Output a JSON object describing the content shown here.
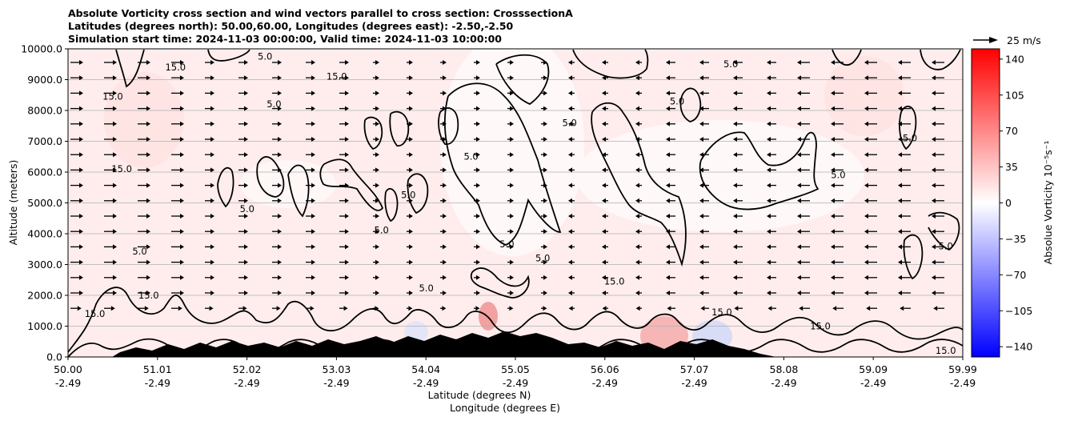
{
  "title_lines": [
    "Absolute Vorticity cross section and wind vectors parallel to cross section: CrosssectionA",
    "Latitudes (degrees north): 50.00,60.00, Longitudes (degrees east): -2.50,-2.50",
    "Simulation start time: 2024-11-03 00:00:00, Valid time: 2024-11-03 10:00:00"
  ],
  "chart_data": {
    "type": "heatmap",
    "xlabel": "Latitude (degrees N)",
    "xlabel2": "Longitude (degrees E)",
    "ylabel": "Altitude (meters)",
    "x_ticks": [
      {
        "lat": "50.00",
        "lon": "-2.49"
      },
      {
        "lat": "51.01",
        "lon": "-2.49"
      },
      {
        "lat": "52.02",
        "lon": "-2.49"
      },
      {
        "lat": "53.03",
        "lon": "-2.49"
      },
      {
        "lat": "54.04",
        "lon": "-2.49"
      },
      {
        "lat": "55.05",
        "lon": "-2.49"
      },
      {
        "lat": "56.06",
        "lon": "-2.49"
      },
      {
        "lat": "57.07",
        "lon": "-2.49"
      },
      {
        "lat": "58.08",
        "lon": "-2.49"
      },
      {
        "lat": "59.09",
        "lon": "-2.49"
      },
      {
        "lat": "59.99",
        "lon": "-2.49"
      }
    ],
    "x_range": [
      50.0,
      59.99
    ],
    "y_ticks": [
      0,
      1000,
      2000,
      3000,
      4000,
      5000,
      6000,
      7000,
      8000,
      9000,
      10000
    ],
    "y_tick_labels": [
      "0.0",
      "1000.0",
      "2000.0",
      "3000.0",
      "4000.0",
      "5000.0",
      "6000.0",
      "7000.0",
      "8000.0",
      "9000.0",
      "10000.0"
    ],
    "ylim": [
      0,
      10000
    ],
    "grid": "horizontal",
    "colorbar": {
      "label": "Absolue Vorticity 10⁻⁵s⁻¹",
      "ticks": [
        140,
        105,
        70,
        35,
        0,
        -35,
        -70,
        -105,
        -140
      ],
      "tick_labels": [
        "140",
        "105",
        "70",
        "35",
        "0",
        "−35",
        "−70",
        "−105",
        "−140"
      ],
      "range": [
        -150,
        150
      ],
      "colormap": "bwr",
      "colors": {
        "max": "#ff0000",
        "mid": "#ffffff",
        "min": "#0000ff"
      }
    },
    "quiver_key": {
      "label": "25 m/s",
      "speed": 25
    },
    "contour_levels": [
      5.0,
      15.0
    ],
    "contour_labels": [
      {
        "text": "5.0",
        "lat": 50.8,
        "alt": 3330
      },
      {
        "text": "5.0",
        "lat": 53.5,
        "alt": 4010
      },
      {
        "text": "5.0",
        "lat": 54.0,
        "alt": 2130
      },
      {
        "text": "5.0",
        "lat": 54.9,
        "alt": 3560
      },
      {
        "text": "5.0",
        "lat": 55.3,
        "alt": 3100
      },
      {
        "text": "5.0",
        "lat": 52.0,
        "alt": 4700
      },
      {
        "text": "5.0",
        "lat": 52.3,
        "alt": 8100
      },
      {
        "text": "5.0",
        "lat": 53.8,
        "alt": 5150
      },
      {
        "text": "5.0",
        "lat": 54.5,
        "alt": 6400
      },
      {
        "text": "5.0",
        "lat": 55.6,
        "alt": 7500
      },
      {
        "text": "5.0",
        "lat": 56.8,
        "alt": 8200
      },
      {
        "text": "5.0",
        "lat": 57.4,
        "alt": 9400
      },
      {
        "text": "5.0",
        "lat": 58.6,
        "alt": 5800
      },
      {
        "text": "5.0",
        "lat": 59.4,
        "alt": 7000
      },
      {
        "text": "5.0",
        "lat": 59.8,
        "alt": 3500
      },
      {
        "text": "5.0",
        "lat": 52.2,
        "alt": 9650
      },
      {
        "text": "15.0",
        "lat": 50.5,
        "alt": 8350
      },
      {
        "text": "15.0",
        "lat": 50.6,
        "alt": 6000
      },
      {
        "text": "15.0",
        "lat": 51.2,
        "alt": 9300
      },
      {
        "text": "15.0",
        "lat": 53.0,
        "alt": 9000
      },
      {
        "text": "15.0",
        "lat": 50.9,
        "alt": 1900
      },
      {
        "text": "15.0",
        "lat": 50.3,
        "alt": 1300
      },
      {
        "text": "15.0",
        "lat": 56.1,
        "alt": 2350
      },
      {
        "text": "15.0",
        "lat": 57.3,
        "alt": 1350
      },
      {
        "text": "15.0",
        "lat": 58.4,
        "alt": 900
      },
      {
        "text": "15.0",
        "lat": 59.8,
        "alt": 100
      }
    ]
  }
}
